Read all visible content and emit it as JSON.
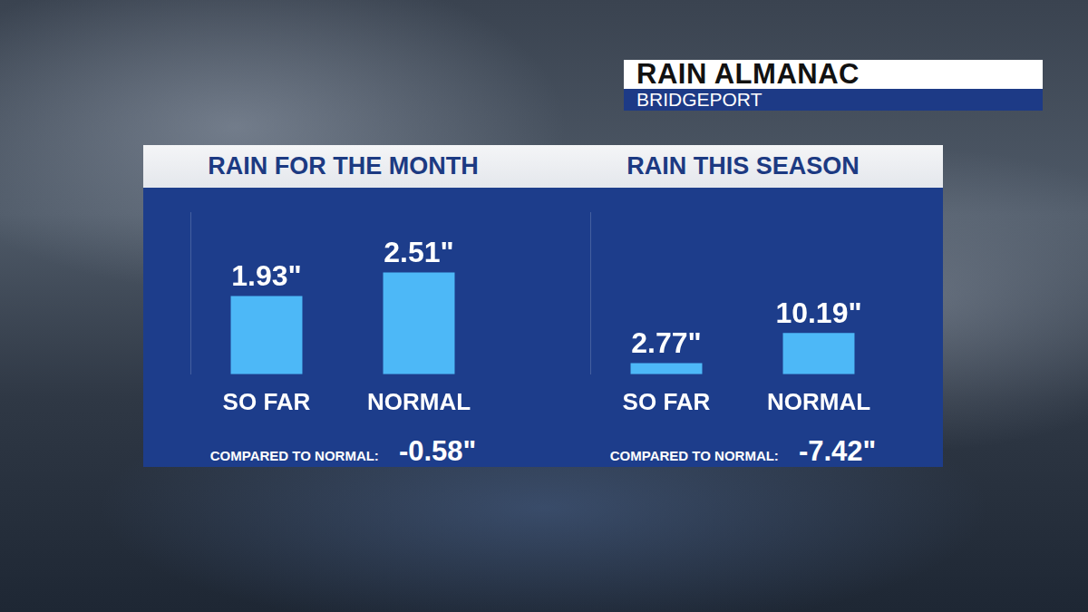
{
  "header": {
    "title": "RAIN ALMANAC",
    "subtitle": "BRIDGEPORT"
  },
  "chart_data": [
    {
      "type": "bar",
      "title": "RAIN FOR THE MONTH",
      "categories": [
        "SO FAR",
        "NORMAL"
      ],
      "values": [
        1.93,
        2.51
      ],
      "value_labels": [
        "1.93\"",
        "2.51\""
      ],
      "color": "#4db8f7",
      "ylim": [
        0,
        4
      ],
      "grid": false,
      "data_labels": true,
      "tick_labels": "x",
      "annotation": {
        "text": "COMPARED TO NORMAL:",
        "value": -0.58,
        "value_label": "-0.58\""
      }
    },
    {
      "type": "bar",
      "title": "RAIN THIS SEASON",
      "categories": [
        "SO FAR",
        "NORMAL"
      ],
      "values": [
        2.77,
        10.19
      ],
      "value_labels": [
        "2.77\"",
        "10.19\""
      ],
      "color": "#4db8f7",
      "ylim": [
        0,
        40
      ],
      "grid": false,
      "data_labels": true,
      "tick_labels": "x",
      "annotation": {
        "text": "COMPARED TO NORMAL:",
        "value": -7.42,
        "value_label": "-7.42\""
      }
    }
  ]
}
